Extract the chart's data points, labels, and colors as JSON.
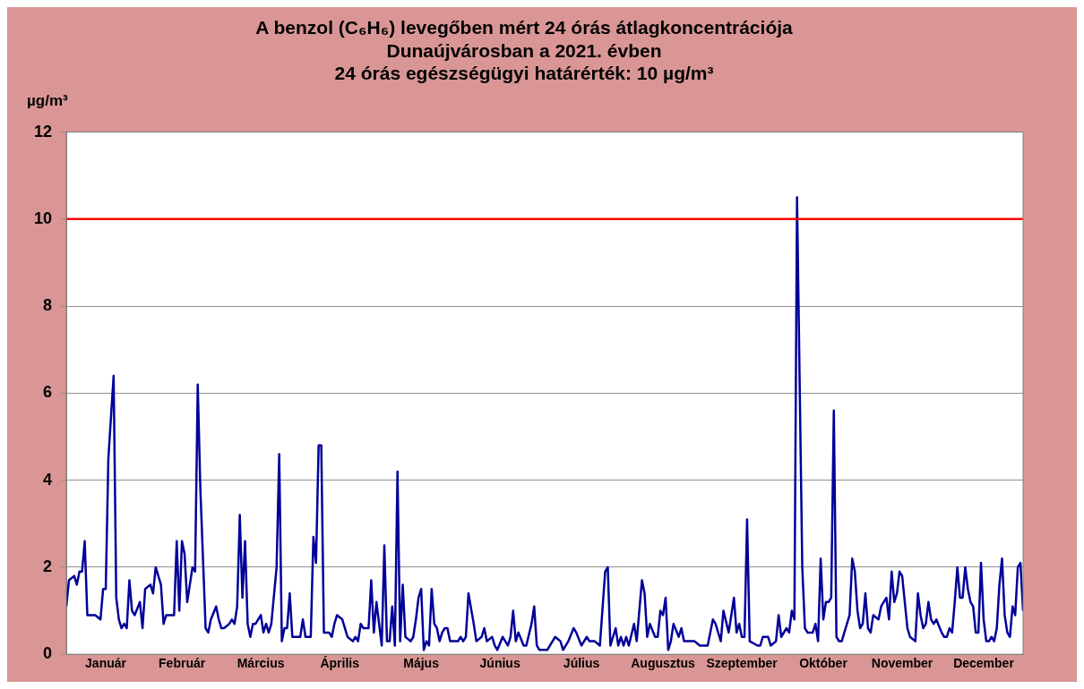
{
  "chart_data": {
    "type": "line",
    "title": "A benzol (C₆H₆) levegőben mért 24 órás átlagkoncentrációja\nDunaújvárosban a 2021. évben",
    "subtitle": "24 órás egészségügyi határérték: 10 µg/m³",
    "ylabel": "µg/m³",
    "xlim": [
      "2021-01-01",
      "2021-12-31"
    ],
    "xticks": [
      {
        "value": "2021-01-16",
        "label": "Január"
      },
      {
        "value": "2021-02-14",
        "label": "Február"
      },
      {
        "value": "2021-03-16",
        "label": "Március"
      },
      {
        "value": "2021-04-15",
        "label": "Április"
      },
      {
        "value": "2021-05-16",
        "label": "Május"
      },
      {
        "value": "2021-06-15",
        "label": "Június"
      },
      {
        "value": "2021-07-16",
        "label": "Július"
      },
      {
        "value": "2021-08-16",
        "label": "Augusztus"
      },
      {
        "value": "2021-09-15",
        "label": "Szeptember"
      },
      {
        "value": "2021-10-16",
        "label": "Október"
      },
      {
        "value": "2021-11-15",
        "label": "November"
      },
      {
        "value": "2021-12-16",
        "label": "December"
      }
    ],
    "ylim": [
      0,
      12
    ],
    "yticks": [
      0,
      2,
      4,
      6,
      8,
      10,
      12
    ],
    "grid": "y",
    "legend": false,
    "marker": "none",
    "line_style": "solid",
    "ref_lines": [
      {
        "axis": "y",
        "value": 10,
        "color": "#ff0000"
      }
    ],
    "series": [
      {
        "color": "#000099",
        "x": [
          "2021-01-01",
          "2021-01-02",
          "2021-01-04",
          "2021-01-05",
          "2021-01-06",
          "2021-01-07",
          "2021-01-08",
          "2021-01-09",
          "2021-01-12",
          "2021-01-14",
          "2021-01-15",
          "2021-01-16",
          "2021-01-17",
          "2021-01-19",
          "2021-01-20",
          "2021-01-21",
          "2021-01-22",
          "2021-01-23",
          "2021-01-24",
          "2021-01-25",
          "2021-01-26",
          "2021-01-27",
          "2021-01-29",
          "2021-01-30",
          "2021-01-31",
          "2021-02-02",
          "2021-02-03",
          "2021-02-04",
          "2021-02-06",
          "2021-02-07",
          "2021-02-08",
          "2021-02-11",
          "2021-02-12",
          "2021-02-13",
          "2021-02-14",
          "2021-02-15",
          "2021-02-16",
          "2021-02-18",
          "2021-02-19",
          "2021-02-20",
          "2021-02-21",
          "2021-02-23",
          "2021-02-24",
          "2021-02-25",
          "2021-02-27",
          "2021-02-28",
          "2021-03-01",
          "2021-03-02",
          "2021-03-04",
          "2021-03-05",
          "2021-03-06",
          "2021-03-07",
          "2021-03-08",
          "2021-03-09",
          "2021-03-10",
          "2021-03-11",
          "2021-03-12",
          "2021-03-13",
          "2021-03-14",
          "2021-03-16",
          "2021-03-17",
          "2021-03-18",
          "2021-03-19",
          "2021-03-20",
          "2021-03-22",
          "2021-03-23",
          "2021-03-24",
          "2021-03-25",
          "2021-03-26",
          "2021-03-27",
          "2021-03-28",
          "2021-03-31",
          "2021-04-01",
          "2021-04-02",
          "2021-04-04",
          "2021-04-05",
          "2021-04-06",
          "2021-04-07",
          "2021-04-08",
          "2021-04-09",
          "2021-04-11",
          "2021-04-12",
          "2021-04-13",
          "2021-04-14",
          "2021-04-16",
          "2021-04-17",
          "2021-04-18",
          "2021-04-20",
          "2021-04-21",
          "2021-04-22",
          "2021-04-23",
          "2021-04-24",
          "2021-04-26",
          "2021-04-27",
          "2021-04-28",
          "2021-04-29",
          "2021-05-01",
          "2021-05-02",
          "2021-05-03",
          "2021-05-04",
          "2021-05-05",
          "2021-05-06",
          "2021-05-07",
          "2021-05-08",
          "2021-05-09",
          "2021-05-10",
          "2021-05-12",
          "2021-05-13",
          "2021-05-14",
          "2021-05-15",
          "2021-05-16",
          "2021-05-17",
          "2021-05-18",
          "2021-05-19",
          "2021-05-20",
          "2021-05-21",
          "2021-05-22",
          "2021-05-23",
          "2021-05-24",
          "2021-05-25",
          "2021-05-26",
          "2021-05-27",
          "2021-05-30",
          "2021-05-31",
          "2021-06-01",
          "2021-06-02",
          "2021-06-03",
          "2021-06-05",
          "2021-06-06",
          "2021-06-08",
          "2021-06-09",
          "2021-06-10",
          "2021-06-12",
          "2021-06-13",
          "2021-06-14",
          "2021-06-16",
          "2021-06-17",
          "2021-06-18",
          "2021-06-19",
          "2021-06-20",
          "2021-06-21",
          "2021-06-22",
          "2021-06-24",
          "2021-06-25",
          "2021-06-27",
          "2021-06-28",
          "2021-06-29",
          "2021-06-30",
          "2021-07-03",
          "2021-07-04",
          "2021-07-06",
          "2021-07-08",
          "2021-07-09",
          "2021-07-11",
          "2021-07-13",
          "2021-07-14",
          "2021-07-16",
          "2021-07-18",
          "2021-07-19",
          "2021-07-21",
          "2021-07-23",
          "2021-07-25",
          "2021-07-26",
          "2021-07-27",
          "2021-07-29",
          "2021-07-30",
          "2021-07-31",
          "2021-08-01",
          "2021-08-02",
          "2021-08-03",
          "2021-08-05",
          "2021-08-06",
          "2021-08-08",
          "2021-08-09",
          "2021-08-10",
          "2021-08-11",
          "2021-08-13",
          "2021-08-14",
          "2021-08-15",
          "2021-08-16",
          "2021-08-17",
          "2021-08-18",
          "2021-08-19",
          "2021-08-20",
          "2021-08-22",
          "2021-08-23",
          "2021-08-24",
          "2021-08-27",
          "2021-08-28",
          "2021-08-30",
          "2021-09-02",
          "2021-09-04",
          "2021-09-05",
          "2021-09-07",
          "2021-09-08",
          "2021-09-10",
          "2021-09-12",
          "2021-09-13",
          "2021-09-14",
          "2021-09-15",
          "2021-09-16",
          "2021-09-17",
          "2021-09-18",
          "2021-09-21",
          "2021-09-22",
          "2021-09-23",
          "2021-09-25",
          "2021-09-26",
          "2021-09-28",
          "2021-09-29",
          "2021-09-30",
          "2021-10-02",
          "2021-10-03",
          "2021-10-04",
          "2021-10-05",
          "2021-10-06",
          "2021-10-08",
          "2021-10-09",
          "2021-10-10",
          "2021-10-12",
          "2021-10-13",
          "2021-10-14",
          "2021-10-15",
          "2021-10-16",
          "2021-10-17",
          "2021-10-18",
          "2021-10-19",
          "2021-10-20",
          "2021-10-21",
          "2021-10-22",
          "2021-10-23",
          "2021-10-26",
          "2021-10-27",
          "2021-10-28",
          "2021-10-29",
          "2021-10-30",
          "2021-10-31",
          "2021-11-01",
          "2021-11-02",
          "2021-11-03",
          "2021-11-04",
          "2021-11-06",
          "2021-11-07",
          "2021-11-09",
          "2021-11-10",
          "2021-11-11",
          "2021-11-12",
          "2021-11-13",
          "2021-11-14",
          "2021-11-15",
          "2021-11-17",
          "2021-11-18",
          "2021-11-20",
          "2021-11-21",
          "2021-11-22",
          "2021-11-23",
          "2021-11-24",
          "2021-11-25",
          "2021-11-26",
          "2021-11-27",
          "2021-11-28",
          "2021-11-30",
          "2021-12-01",
          "2021-12-02",
          "2021-12-03",
          "2021-12-04",
          "2021-12-05",
          "2021-12-06",
          "2021-12-07",
          "2021-12-08",
          "2021-12-09",
          "2021-12-10",
          "2021-12-11",
          "2021-12-12",
          "2021-12-13",
          "2021-12-14",
          "2021-12-15",
          "2021-12-16",
          "2021-12-17",
          "2021-12-18",
          "2021-12-19",
          "2021-12-20",
          "2021-12-21",
          "2021-12-22",
          "2021-12-23",
          "2021-12-24",
          "2021-12-25",
          "2021-12-26",
          "2021-12-27",
          "2021-12-28",
          "2021-12-29",
          "2021-12-30",
          "2021-12-31"
        ],
        "values": [
          1.1,
          1.7,
          1.8,
          1.6,
          1.9,
          1.9,
          2.6,
          0.9,
          0.9,
          0.8,
          1.5,
          1.5,
          4.5,
          6.4,
          1.3,
          0.8,
          0.6,
          0.7,
          0.6,
          1.7,
          1.0,
          0.9,
          1.2,
          0.6,
          1.5,
          1.6,
          1.4,
          2.0,
          1.6,
          0.7,
          0.9,
          0.9,
          2.6,
          1.0,
          2.6,
          2.3,
          1.2,
          2.0,
          1.9,
          6.2,
          3.8,
          0.6,
          0.5,
          0.8,
          1.1,
          0.8,
          0.6,
          0.6,
          0.7,
          0.8,
          0.7,
          1.1,
          3.2,
          1.3,
          2.6,
          0.7,
          0.4,
          0.7,
          0.7,
          0.9,
          0.5,
          0.7,
          0.5,
          0.7,
          2.0,
          4.6,
          0.3,
          0.6,
          0.6,
          1.4,
          0.4,
          0.4,
          0.8,
          0.4,
          0.4,
          2.7,
          2.1,
          4.8,
          4.8,
          0.5,
          0.5,
          0.4,
          0.7,
          0.9,
          0.8,
          0.6,
          0.4,
          0.3,
          0.4,
          0.3,
          0.7,
          0.6,
          0.6,
          1.7,
          0.5,
          1.2,
          0.2,
          2.5,
          0.3,
          0.3,
          1.1,
          0.2,
          4.2,
          0.3,
          1.6,
          0.4,
          0.3,
          0.4,
          0.8,
          1.3,
          1.5,
          0.1,
          0.3,
          0.2,
          1.5,
          0.7,
          0.6,
          0.3,
          0.5,
          0.6,
          0.6,
          0.3,
          0.3,
          0.4,
          0.3,
          0.4,
          1.4,
          0.7,
          0.3,
          0.4,
          0.6,
          0.3,
          0.4,
          0.2,
          0.1,
          0.4,
          0.3,
          0.2,
          0.4,
          1.0,
          0.3,
          0.5,
          0.2,
          0.2,
          0.7,
          1.1,
          0.2,
          0.1,
          0.1,
          0.2,
          0.4,
          0.3,
          0.1,
          0.3,
          0.6,
          0.5,
          0.2,
          0.4,
          0.3,
          0.3,
          0.2,
          1.9,
          2.0,
          0.2,
          0.6,
          0.2,
          0.4,
          0.2,
          0.4,
          0.2,
          0.7,
          0.3,
          1.7,
          1.4,
          0.4,
          0.7,
          0.4,
          0.4,
          1.0,
          0.9,
          1.3,
          0.1,
          0.3,
          0.7,
          0.4,
          0.6,
          0.3,
          0.3,
          0.3,
          0.2,
          0.2,
          0.8,
          0.7,
          0.3,
          1.0,
          0.5,
          1.3,
          0.5,
          0.7,
          0.4,
          0.4,
          3.1,
          0.3,
          0.2,
          0.2,
          0.4,
          0.4,
          0.2,
          0.3,
          0.9,
          0.4,
          0.6,
          0.5,
          1.0,
          0.8,
          10.5,
          2.0,
          0.6,
          0.5,
          0.5,
          0.7,
          0.3,
          2.2,
          0.8,
          1.2,
          1.2,
          1.3,
          5.6,
          0.4,
          0.3,
          0.3,
          0.9,
          2.2,
          1.9,
          1.0,
          0.6,
          0.7,
          1.4,
          0.6,
          0.5,
          0.9,
          0.8,
          1.1,
          1.3,
          0.8,
          1.9,
          1.2,
          1.4,
          1.9,
          1.8,
          0.6,
          0.4,
          0.3,
          1.4,
          0.9,
          0.6,
          0.7,
          1.2,
          0.8,
          0.7,
          0.8,
          0.5,
          0.4,
          0.4,
          0.6,
          0.5,
          1.2,
          2.0,
          1.3,
          1.3,
          2.0,
          1.5,
          1.2,
          1.1,
          0.5,
          0.5,
          2.1,
          0.8,
          0.3,
          0.3,
          0.4,
          0.3,
          0.6,
          1.6,
          2.2,
          0.9,
          0.5,
          0.4,
          1.1,
          0.9,
          2.0,
          2.1,
          1.0
        ]
      }
    ]
  }
}
